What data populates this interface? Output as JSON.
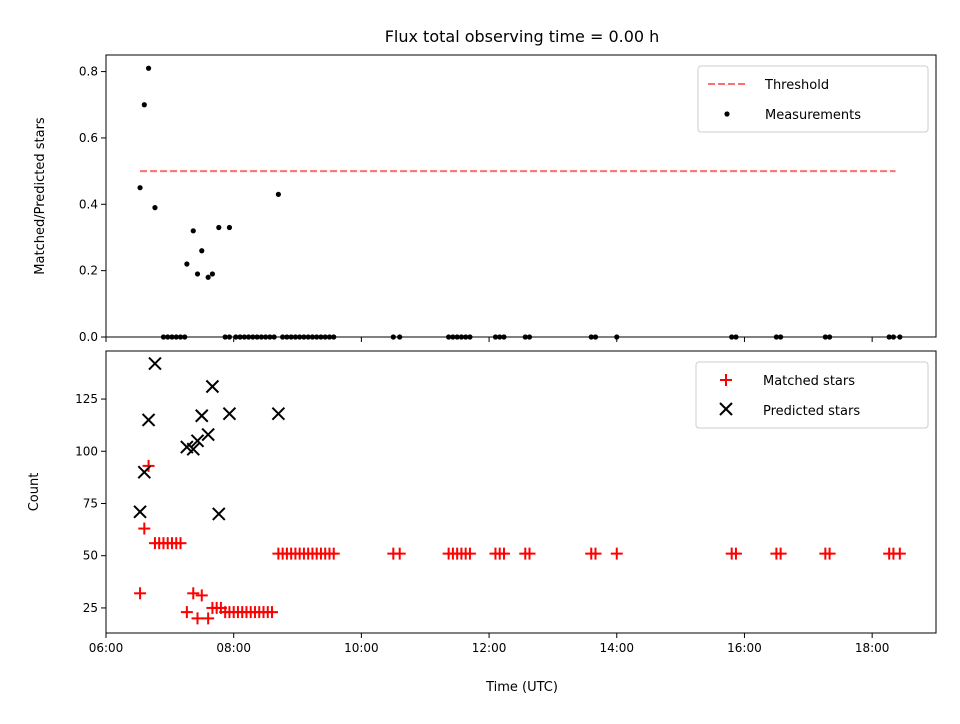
{
  "chart_data": [
    {
      "type": "scatter",
      "title": "Flux total observing time = 0.00 h",
      "xlabel": "",
      "ylabel": "Matched/Predicted stars",
      "xlim": [
        "06:00",
        "19:00"
      ],
      "ylim": [
        0,
        0.85
      ],
      "x_ticks": [
        "06:00",
        "08:00",
        "10:00",
        "12:00",
        "14:00",
        "16:00",
        "18:00"
      ],
      "y_ticks": [
        0.0,
        0.2,
        0.4,
        0.6,
        0.8
      ],
      "y_tick_labels": [
        "0.0",
        "0.2",
        "0.4",
        "0.6",
        "0.8"
      ],
      "legend_position": "upper right",
      "legend": [
        "Threshold",
        "Measurements"
      ],
      "colors": {
        "threshold": "#ff6e6e",
        "measurements": "#000000"
      },
      "threshold": {
        "name": "Threshold",
        "value": 0.5,
        "x_range": [
          "06:32",
          "18:22"
        ],
        "style": "dashed"
      },
      "series": [
        {
          "name": "Measurements",
          "x": [
            "06:32",
            "06:36",
            "06:40",
            "06:46",
            "07:16",
            "07:22",
            "07:26",
            "07:30",
            "07:36",
            "07:40",
            "07:46",
            "07:56",
            "08:42",
            "06:54",
            "06:58",
            "07:02",
            "07:06",
            "07:10",
            "07:14",
            "07:52",
            "07:56",
            "08:02",
            "08:06",
            "08:10",
            "08:14",
            "08:18",
            "08:22",
            "08:26",
            "08:30",
            "08:34",
            "08:38",
            "08:46",
            "08:50",
            "08:54",
            "08:58",
            "09:02",
            "09:06",
            "09:10",
            "09:14",
            "09:18",
            "09:22",
            "09:26",
            "09:30",
            "09:34",
            "10:30",
            "10:36",
            "11:22",
            "11:26",
            "11:30",
            "11:34",
            "11:38",
            "11:42",
            "12:06",
            "12:10",
            "12:14",
            "12:34",
            "12:38",
            "13:36",
            "13:40",
            "14:00",
            "15:48",
            "15:52",
            "16:30",
            "16:34",
            "17:16",
            "17:20",
            "18:16",
            "18:20",
            "18:26"
          ],
          "y": [
            0.45,
            0.7,
            0.81,
            0.39,
            0.22,
            0.32,
            0.19,
            0.26,
            0.18,
            0.19,
            0.33,
            0.33,
            0.43,
            0,
            0,
            0,
            0,
            0,
            0,
            0,
            0,
            0,
            0,
            0,
            0,
            0,
            0,
            0,
            0,
            0,
            0,
            0,
            0,
            0,
            0,
            0,
            0,
            0,
            0,
            0,
            0,
            0,
            0,
            0,
            0,
            0,
            0,
            0,
            0,
            0,
            0,
            0,
            0,
            0,
            0,
            0,
            0,
            0,
            0,
            0,
            0,
            0,
            0,
            0,
            0,
            0,
            0,
            0,
            0
          ]
        }
      ]
    },
    {
      "type": "scatter",
      "title": "",
      "xlabel": "Time (UTC)",
      "ylabel": "Count",
      "xlim": [
        "06:00",
        "19:00"
      ],
      "ylim": [
        13,
        148
      ],
      "x_ticks": [
        "06:00",
        "08:00",
        "10:00",
        "12:00",
        "14:00",
        "16:00",
        "18:00"
      ],
      "y_ticks": [
        25,
        50,
        75,
        100,
        125
      ],
      "y_tick_labels": [
        "25",
        "50",
        "75",
        "100",
        "125"
      ],
      "legend_position": "upper right",
      "legend": [
        "Matched stars",
        "Predicted stars"
      ],
      "colors": {
        "matched": "#ff0000",
        "predicted": "#000000"
      },
      "series": [
        {
          "name": "Matched stars",
          "marker": "+",
          "x": [
            "06:32",
            "06:36",
            "06:40",
            "06:46",
            "06:50",
            "06:54",
            "06:58",
            "07:02",
            "07:06",
            "07:10",
            "07:16",
            "07:22",
            "07:26",
            "07:30",
            "07:36",
            "07:40",
            "07:44",
            "07:48",
            "07:52",
            "07:56",
            "08:00",
            "08:04",
            "08:08",
            "08:12",
            "08:16",
            "08:20",
            "08:24",
            "08:28",
            "08:32",
            "08:36",
            "08:42",
            "08:46",
            "08:50",
            "08:54",
            "08:58",
            "09:02",
            "09:06",
            "09:10",
            "09:14",
            "09:18",
            "09:22",
            "09:26",
            "09:30",
            "09:34",
            "10:30",
            "10:36",
            "11:22",
            "11:26",
            "11:30",
            "11:34",
            "11:38",
            "11:42",
            "12:06",
            "12:10",
            "12:14",
            "12:34",
            "12:38",
            "13:36",
            "13:40",
            "14:00",
            "15:48",
            "15:52",
            "16:30",
            "16:34",
            "17:16",
            "17:20",
            "18:16",
            "18:20",
            "18:26"
          ],
          "y": [
            32,
            63,
            93,
            56,
            56,
            56,
            56,
            56,
            56,
            56,
            23,
            32,
            20,
            31,
            20,
            25,
            25,
            25,
            23,
            23,
            23,
            23,
            23,
            23,
            23,
            23,
            23,
            23,
            23,
            23,
            51,
            51,
            51,
            51,
            51,
            51,
            51,
            51,
            51,
            51,
            51,
            51,
            51,
            51,
            51,
            51,
            51,
            51,
            51,
            51,
            51,
            51,
            51,
            51,
            51,
            51,
            51,
            51,
            51,
            51,
            51,
            51,
            51,
            51,
            51,
            51,
            51,
            51,
            51
          ]
        },
        {
          "name": "Predicted stars",
          "marker": "x",
          "x": [
            "06:32",
            "06:36",
            "06:40",
            "06:46",
            "07:16",
            "07:22",
            "07:26",
            "07:30",
            "07:36",
            "07:40",
            "07:46",
            "07:56",
            "08:42"
          ],
          "y": [
            71,
            90,
            115,
            142,
            102,
            101,
            105,
            117,
            108,
            131,
            70,
            118,
            118
          ]
        }
      ]
    }
  ]
}
